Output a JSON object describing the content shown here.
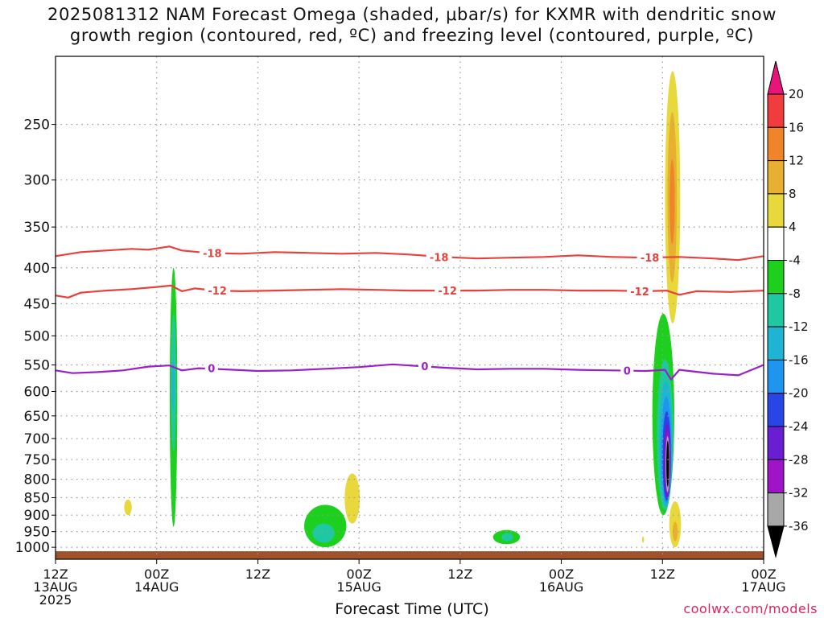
{
  "title": {
    "line1": "2025081312 NAM Forecast Omega (shaded, μbar/s) for KXMR with dendritic snow",
    "line2": "growth region (contoured, red, ºC) and freezing level (contoured, purple, ºC)"
  },
  "xlabel": "Forecast Time (UTC)",
  "credit": "coolwx.com/models",
  "colors": {
    "dgz": "#e8413c",
    "freezing": "#9b1fc8",
    "ground": "#a0522d",
    "grid": "#999999"
  },
  "chart_data": {
    "type": "heatmap",
    "ylabel": "",
    "y_axis": {
      "scale": "log",
      "reversed": true,
      "ticks": [
        250,
        300,
        350,
        400,
        450,
        500,
        550,
        600,
        650,
        700,
        750,
        800,
        850,
        900,
        950,
        1000
      ],
      "range": [
        200,
        1040
      ]
    },
    "x_axis": {
      "range_hours": [
        0,
        84
      ],
      "ticks": [
        {
          "hour": 0,
          "label": "12Z",
          "sub": "13AUG",
          "sub2": "2025"
        },
        {
          "hour": 12,
          "label": "00Z",
          "sub": "14AUG",
          "sub2": ""
        },
        {
          "hour": 24,
          "label": "12Z",
          "sub": "",
          "sub2": ""
        },
        {
          "hour": 36,
          "label": "00Z",
          "sub": "15AUG",
          "sub2": ""
        },
        {
          "hour": 48,
          "label": "12Z",
          "sub": "",
          "sub2": ""
        },
        {
          "hour": 60,
          "label": "00Z",
          "sub": "16AUG",
          "sub2": ""
        },
        {
          "hour": 72,
          "label": "12Z",
          "sub": "",
          "sub2": ""
        },
        {
          "hour": 84,
          "label": "00Z",
          "sub": "17AUG",
          "sub2": ""
        }
      ]
    },
    "colorbar": {
      "labels": [
        "20",
        "16",
        "12",
        "8",
        "4",
        "-4",
        "-8",
        "-12",
        "-16",
        "-20",
        "-24",
        "-28",
        "-32",
        "-36"
      ],
      "bins": [
        {
          "range": "16 to 20",
          "color": "#f03c3c"
        },
        {
          "range": "12 to 16",
          "color": "#f08428"
        },
        {
          "range": "8 to 12",
          "color": "#e8b030"
        },
        {
          "range": "4 to 8",
          "color": "#e8d83c"
        },
        {
          "range": "-4 to 4",
          "color": "#ffffff"
        },
        {
          "range": "-8 to -4",
          "color": "#1ed01e"
        },
        {
          "range": "-12 to -8",
          "color": "#1ec8a0"
        },
        {
          "range": "-16 to -12",
          "color": "#1eb4d4"
        },
        {
          "range": "-20 to -16",
          "color": "#1e96f0"
        },
        {
          "range": "-24 to -20",
          "color": "#2846e6"
        },
        {
          "range": "-28 to -24",
          "color": "#6a1ed4"
        },
        {
          "range": "-32 to -28",
          "color": "#a014c8"
        },
        {
          "range": "-36 to -32",
          "color": "#a8a8a8"
        }
      ],
      "top_arrow_color": "#e8147a",
      "bottom_arrow_color": "#000000"
    },
    "contours": [
      {
        "label": "-18",
        "color": "#e8413c",
        "label_hours": [
          18.6,
          45.5,
          70.5
        ],
        "points": [
          [
            0,
            385
          ],
          [
            3,
            380
          ],
          [
            6,
            378
          ],
          [
            9,
            376
          ],
          [
            11,
            377
          ],
          [
            13.5,
            373
          ],
          [
            15,
            378
          ],
          [
            18,
            381
          ],
          [
            22,
            382
          ],
          [
            26,
            380
          ],
          [
            30,
            381
          ],
          [
            34,
            382
          ],
          [
            38,
            381
          ],
          [
            42,
            383
          ],
          [
            46,
            386
          ],
          [
            50,
            388
          ],
          [
            54,
            387
          ],
          [
            58,
            386
          ],
          [
            62,
            384
          ],
          [
            66,
            386
          ],
          [
            70,
            387
          ],
          [
            74,
            386
          ],
          [
            78,
            388
          ],
          [
            81,
            390
          ],
          [
            84,
            385
          ]
        ]
      },
      {
        "label": "-12",
        "color": "#e8413c",
        "label_hours": [
          19.2,
          46.5,
          69.3
        ],
        "points": [
          [
            0,
            438
          ],
          [
            1.5,
            441
          ],
          [
            3,
            434
          ],
          [
            6,
            431
          ],
          [
            9,
            429
          ],
          [
            12,
            426
          ],
          [
            13.7,
            424
          ],
          [
            15,
            432
          ],
          [
            16.5,
            428
          ],
          [
            19,
            431
          ],
          [
            22,
            432
          ],
          [
            26,
            431
          ],
          [
            30,
            430
          ],
          [
            34,
            429
          ],
          [
            38,
            430
          ],
          [
            42,
            431
          ],
          [
            46,
            431
          ],
          [
            50,
            431
          ],
          [
            54,
            430
          ],
          [
            58,
            430
          ],
          [
            62,
            431
          ],
          [
            66,
            431
          ],
          [
            70,
            432
          ],
          [
            72.5,
            431
          ],
          [
            74,
            437
          ],
          [
            76,
            432
          ],
          [
            80,
            433
          ],
          [
            84,
            431
          ]
        ]
      },
      {
        "label": "0",
        "color": "#9b1fc8",
        "label_hours": [
          18.5,
          43.8,
          67.8
        ],
        "points": [
          [
            0,
            560
          ],
          [
            2,
            565
          ],
          [
            5,
            563
          ],
          [
            8,
            560
          ],
          [
            11,
            553
          ],
          [
            13.5,
            551
          ],
          [
            15,
            560
          ],
          [
            17,
            556
          ],
          [
            20,
            558
          ],
          [
            24,
            561
          ],
          [
            28,
            560
          ],
          [
            32,
            557
          ],
          [
            36,
            554
          ],
          [
            40,
            549
          ],
          [
            43,
            552
          ],
          [
            46,
            555
          ],
          [
            50,
            558
          ],
          [
            54,
            557
          ],
          [
            58,
            557
          ],
          [
            62,
            559
          ],
          [
            66,
            560
          ],
          [
            70,
            561
          ],
          [
            72.3,
            559
          ],
          [
            73,
            577
          ],
          [
            74,
            559
          ],
          [
            78,
            566
          ],
          [
            81,
            569
          ],
          [
            84,
            550
          ]
        ]
      }
    ],
    "shaded_features": [
      {
        "class": "-8 to -4",
        "color": "#1ed01e",
        "kind": "ellipse",
        "hour_center": 14.0,
        "hour_halfwidth": 0.45,
        "p_top": 400,
        "p_bottom": 935
      },
      {
        "class": "-12 to -8",
        "color": "#1ec8a0",
        "kind": "ellipse",
        "hour_center": 14.0,
        "hour_halfwidth": 0.3,
        "p_top": 465,
        "p_bottom": 730
      },
      {
        "class": "-16 to -12",
        "color": "#1eb4d4",
        "kind": "ellipse",
        "hour_center": 13.95,
        "hour_halfwidth": 0.18,
        "p_top": 540,
        "p_bottom": 640
      },
      {
        "class": "4 to 8",
        "color": "#e8d83c",
        "kind": "ellipse",
        "hour_center": 8.6,
        "hour_halfwidth": 0.45,
        "p_top": 855,
        "p_bottom": 900
      },
      {
        "class": "-8 to -4",
        "color": "#1ed01e",
        "kind": "ellipse",
        "hour_center": 32.0,
        "hour_halfwidth": 2.5,
        "p_top": 870,
        "p_bottom": 1000
      },
      {
        "class": "-12 to -8",
        "color": "#1ec8a0",
        "kind": "ellipse",
        "hour_center": 31.8,
        "hour_halfwidth": 1.3,
        "p_top": 925,
        "p_bottom": 985
      },
      {
        "class": "4 to 8",
        "color": "#e8d83c",
        "kind": "ellipse",
        "hour_center": 35.2,
        "hour_halfwidth": 0.9,
        "p_top": 785,
        "p_bottom": 925
      },
      {
        "class": "-8 to -4",
        "color": "#1ed01e",
        "kind": "ellipse",
        "hour_center": 53.5,
        "hour_halfwidth": 1.6,
        "p_top": 945,
        "p_bottom": 990
      },
      {
        "class": "-12 to -8",
        "color": "#1ec8a0",
        "kind": "ellipse",
        "hour_center": 53.6,
        "hour_halfwidth": 0.7,
        "p_top": 955,
        "p_bottom": 980
      },
      {
        "class": "4 to 8",
        "color": "#e8d83c",
        "kind": "ellipse",
        "hour_center": 73.2,
        "hour_halfwidth": 0.9,
        "p_top": 210,
        "p_bottom": 480
      },
      {
        "class": "8 to 12",
        "color": "#e8b030",
        "kind": "ellipse",
        "hour_center": 73.15,
        "hour_halfwidth": 0.55,
        "p_top": 240,
        "p_bottom": 420
      },
      {
        "class": "12 to 16",
        "color": "#f08428",
        "kind": "ellipse",
        "hour_center": 73.15,
        "hour_halfwidth": 0.3,
        "p_top": 280,
        "p_bottom": 370
      },
      {
        "class": "4 to 8",
        "color": "#e8d83c",
        "kind": "ellipse",
        "hour_center": 73.5,
        "hour_halfwidth": 0.7,
        "p_top": 860,
        "p_bottom": 1000
      },
      {
        "class": "8 to 12",
        "color": "#e8b030",
        "kind": "ellipse",
        "hour_center": 73.5,
        "hour_halfwidth": 0.3,
        "p_top": 920,
        "p_bottom": 980
      },
      {
        "class": "4 to 8",
        "color": "#e8d83c",
        "kind": "ellipse",
        "hour_center": 69.7,
        "hour_halfwidth": 0.12,
        "p_top": 965,
        "p_bottom": 985
      },
      {
        "class": "-8 to -4",
        "color": "#1ed01e",
        "kind": "ellipse",
        "hour_center": 72.1,
        "hour_halfwidth": 1.3,
        "p_top": 465,
        "p_bottom": 900
      },
      {
        "class": "-12 to -8",
        "color": "#1ec8a0",
        "kind": "ellipse",
        "hour_center": 72.3,
        "hour_halfwidth": 0.95,
        "p_top": 540,
        "p_bottom": 885
      },
      {
        "class": "-16 to -12",
        "color": "#1eb4d4",
        "kind": "ellipse",
        "hour_center": 72.4,
        "hour_halfwidth": 0.78,
        "p_top": 580,
        "p_bottom": 875
      },
      {
        "class": "-20 to -16",
        "color": "#1e96f0",
        "kind": "ellipse",
        "hour_center": 72.45,
        "hour_halfwidth": 0.62,
        "p_top": 610,
        "p_bottom": 865
      },
      {
        "class": "-24 to -20",
        "color": "#2846e6",
        "kind": "ellipse",
        "hour_center": 72.5,
        "hour_halfwidth": 0.5,
        "p_top": 640,
        "p_bottom": 858
      },
      {
        "class": "-28 to -24",
        "color": "#6a1ed4",
        "kind": "ellipse",
        "hour_center": 72.55,
        "hour_halfwidth": 0.4,
        "p_top": 665,
        "p_bottom": 850
      },
      {
        "class": "-32 to -28",
        "color": "#a014c8",
        "kind": "ellipse",
        "hour_center": 72.6,
        "hour_halfwidth": 0.3,
        "p_top": 685,
        "p_bottom": 842
      },
      {
        "class": "-36 to -32",
        "color": "#a8a8a8",
        "kind": "ellipse",
        "hour_center": 72.6,
        "hour_halfwidth": 0.24,
        "p_top": 695,
        "p_bottom": 835
      },
      {
        "class": "< -36",
        "color": "#000000",
        "kind": "ellipse",
        "hour_center": 72.62,
        "hour_halfwidth": 0.16,
        "p_top": 705,
        "p_bottom": 820
      }
    ],
    "ground_surface": {
      "color": "#a0522d",
      "p_top": 1013
    }
  }
}
